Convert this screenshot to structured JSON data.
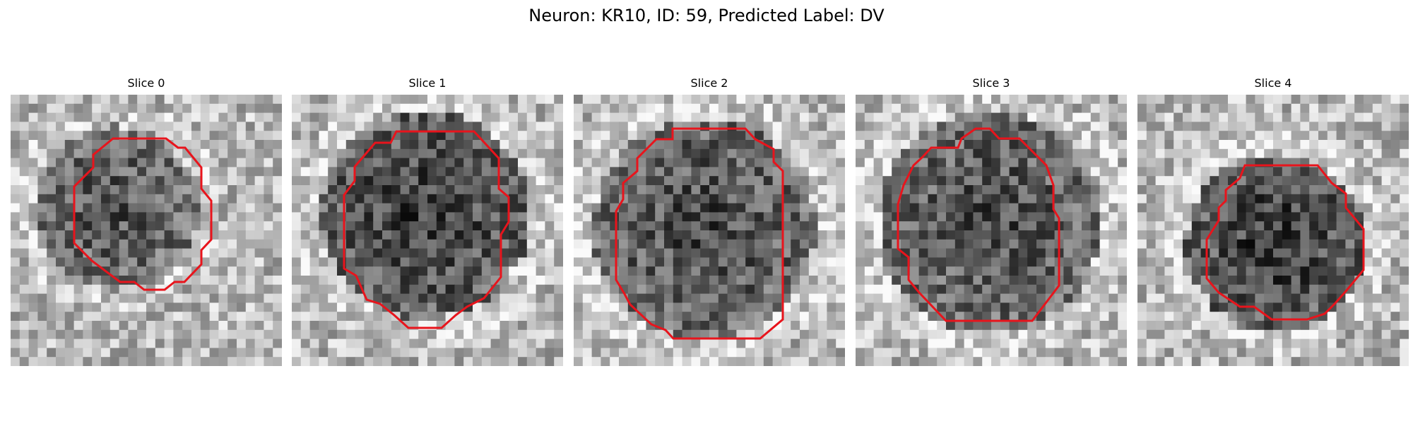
{
  "figure": {
    "title": "Neuron: KR10, ID: 59, Predicted Label: DV"
  },
  "panels": [
    {
      "title": "Slice 0",
      "contour_color": "#e8141c"
    },
    {
      "title": "Slice 1",
      "contour_color": "#e8141c"
    },
    {
      "title": "Slice 2",
      "contour_color": "#e8141c"
    },
    {
      "title": "Slice 3",
      "contour_color": "#e8141c"
    },
    {
      "title": "Slice 4",
      "contour_color": "#e8141c"
    }
  ],
  "colormap": "grayscale"
}
